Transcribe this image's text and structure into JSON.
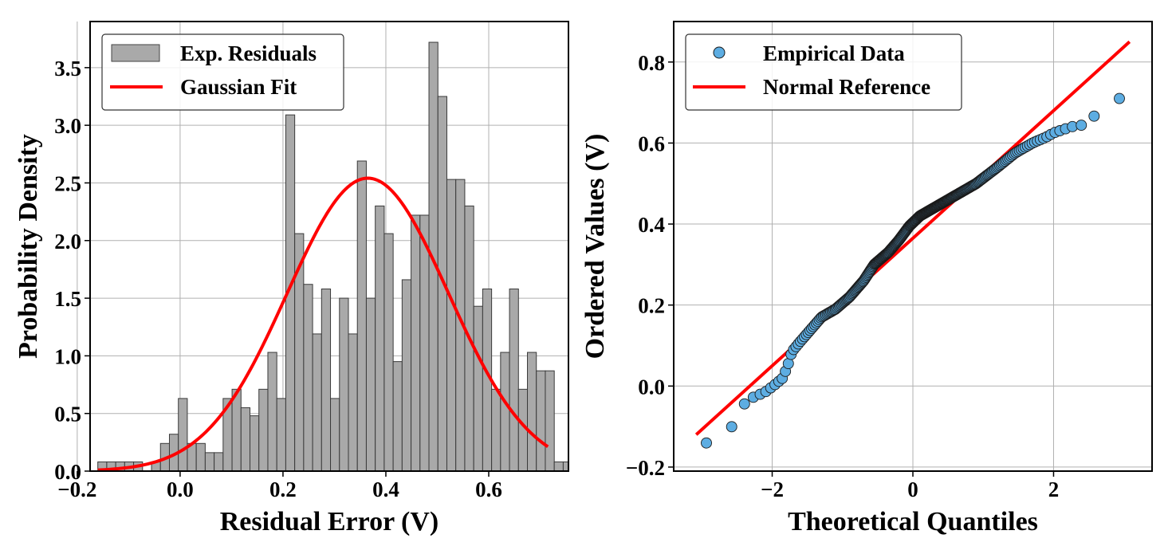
{
  "chart_data": [
    {
      "type": "histogram",
      "panel": "left",
      "xlabel": "Residual Error (V)",
      "ylabel": "Probability Density",
      "xlim": [
        -0.175,
        0.755
      ],
      "ylim": [
        0,
        3.9
      ],
      "xticks": [
        -0.2,
        0.0,
        0.2,
        0.4,
        0.6
      ],
      "xtick_labels": [
        "−0.2",
        "0.0",
        "0.2",
        "0.4",
        "0.6"
      ],
      "yticks": [
        0.0,
        0.5,
        1.0,
        1.5,
        2.0,
        2.5,
        3.0,
        3.5
      ],
      "ytick_labels": [
        "0.0",
        "0.5",
        "1.0",
        "1.5",
        "2.0",
        "2.5",
        "3.0",
        "3.5"
      ],
      "grid": true,
      "legend_position": "top-left",
      "bin_start": -0.16,
      "bin_width": 0.0174,
      "densities": [
        0.08,
        0.08,
        0.08,
        0.08,
        0.08,
        0.0,
        0.08,
        0.24,
        0.32,
        0.63,
        0.24,
        0.24,
        0.16,
        0.16,
        0.63,
        0.71,
        0.55,
        0.48,
        0.71,
        1.03,
        0.63,
        3.09,
        2.06,
        1.62,
        1.19,
        1.58,
        0.63,
        1.5,
        1.19,
        2.69,
        1.5,
        2.3,
        2.06,
        0.95,
        1.66,
        2.22,
        2.22,
        3.72,
        3.25,
        2.53,
        2.53,
        2.3,
        1.43,
        1.58,
        0.71,
        1.03,
        1.58,
        0.71,
        1.03,
        0.87,
        0.87,
        0.08,
        0.08,
        0.08,
        0.16
      ],
      "fit": {
        "type": "gaussian",
        "mean": 0.365,
        "std": 0.157,
        "x_range": [
          -0.16,
          0.715
        ]
      },
      "legend": [
        {
          "label": "Exp. Residuals",
          "kind": "bar",
          "color": "#a9a9a9"
        },
        {
          "label": "Gaussian Fit",
          "kind": "line",
          "color": "#ff0000"
        }
      ]
    },
    {
      "type": "scatter",
      "panel": "right",
      "xlabel": "Theoretical Quantiles",
      "ylabel": "Ordered Values (V)",
      "xlim": [
        -3.4,
        3.4
      ],
      "ylim": [
        -0.21,
        0.9
      ],
      "xticks": [
        -2,
        0,
        2
      ],
      "xtick_labels": [
        "−2",
        "0",
        "2"
      ],
      "yticks": [
        -0.2,
        0.0,
        0.2,
        0.4,
        0.6,
        0.8
      ],
      "ytick_labels": [
        "−0.2",
        "0.0",
        "0.2",
        "0.4",
        "0.6",
        "0.8"
      ],
      "grid": true,
      "legend_position": "top-left",
      "quantile_curve": [
        [
          -3.08,
          -0.16
        ],
        [
          -2.82,
          -0.125
        ],
        [
          -2.67,
          -0.115
        ],
        [
          -2.56,
          -0.098
        ],
        [
          -2.48,
          -0.078
        ],
        [
          -2.4,
          -0.045
        ],
        [
          -2.3,
          -0.03
        ],
        [
          -2.1,
          -0.015
        ],
        [
          -1.95,
          0.005
        ],
        [
          -1.85,
          0.02
        ],
        [
          -1.78,
          0.05
        ],
        [
          -1.72,
          0.085
        ],
        [
          -1.6,
          0.11
        ],
        [
          -1.45,
          0.14
        ],
        [
          -1.3,
          0.17
        ],
        [
          -1.1,
          0.19
        ],
        [
          -0.9,
          0.22
        ],
        [
          -0.7,
          0.26
        ],
        [
          -0.55,
          0.3
        ],
        [
          -0.35,
          0.33
        ],
        [
          -0.2,
          0.36
        ],
        [
          -0.05,
          0.395
        ],
        [
          0.1,
          0.42
        ],
        [
          0.3,
          0.44
        ],
        [
          0.6,
          0.47
        ],
        [
          0.9,
          0.5
        ],
        [
          1.2,
          0.54
        ],
        [
          1.45,
          0.575
        ],
        [
          1.7,
          0.6
        ],
        [
          1.9,
          0.615
        ],
        [
          2.0,
          0.625
        ],
        [
          2.25,
          0.64
        ],
        [
          2.43,
          0.645
        ],
        [
          2.55,
          0.66
        ],
        [
          2.67,
          0.69
        ],
        [
          2.83,
          0.71
        ],
        [
          3.08,
          0.71
        ]
      ],
      "n_points": 300,
      "reference_line": {
        "x": [
          -3.08,
          3.08
        ],
        "y": [
          -0.12,
          0.85
        ]
      },
      "legend": [
        {
          "label": "Empirical Data",
          "kind": "marker",
          "color": "#5dade2"
        },
        {
          "label": "Normal Reference",
          "kind": "line",
          "color": "#ff0000"
        }
      ]
    }
  ]
}
